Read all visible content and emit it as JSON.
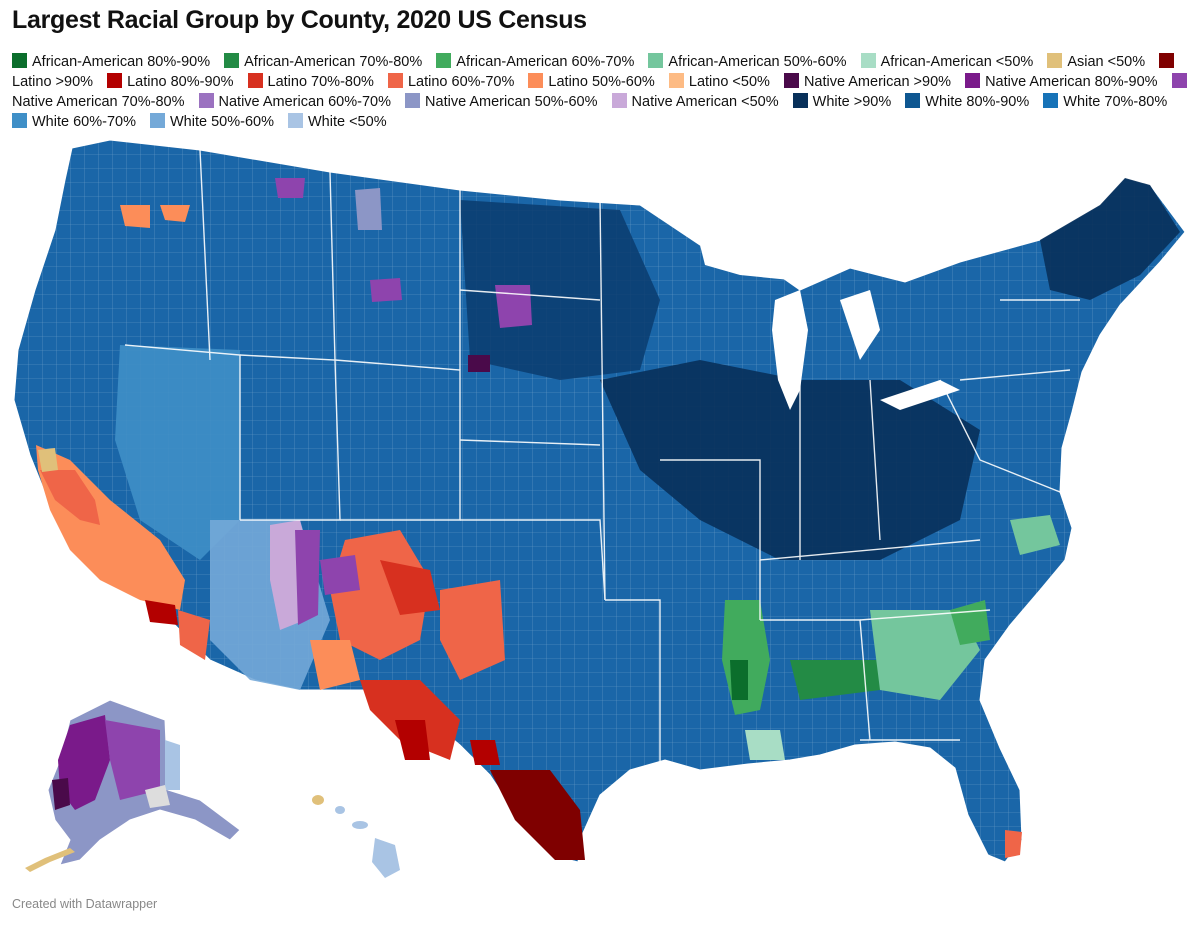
{
  "title": "Largest Racial Group by County, 2020 US Census",
  "footer": "Created with Datawrapper",
  "legend": [
    {
      "label": "African-American 80%-90%",
      "color": "#0b6e2c"
    },
    {
      "label": "African-American 70%-80%",
      "color": "#238b45"
    },
    {
      "label": "African-American 60%-70%",
      "color": "#41ab5d"
    },
    {
      "label": "African-American 50%-60%",
      "color": "#74c69d"
    },
    {
      "label": "African-American <50%",
      "color": "#a8ddc5"
    },
    {
      "label": "Asian <50%",
      "color": "#e0c07a"
    },
    {
      "label": "Latino >90%",
      "color": "#7f0000"
    },
    {
      "label": "Latino 80%-90%",
      "color": "#b30000"
    },
    {
      "label": "Latino 70%-80%",
      "color": "#d7301f"
    },
    {
      "label": "Latino 60%-70%",
      "color": "#ef6548"
    },
    {
      "label": "Latino 50%-60%",
      "color": "#fc8d59"
    },
    {
      "label": "Latino <50%",
      "color": "#fdbb84"
    },
    {
      "label": "Native American >90%",
      "color": "#4a0a4a"
    },
    {
      "label": "Native American 80%-90%",
      "color": "#7a1a8a"
    },
    {
      "label": "Native American 70%-80%",
      "color": "#8e44ad"
    },
    {
      "label": "Native American 60%-70%",
      "color": "#9b72c0"
    },
    {
      "label": "Native American 50%-60%",
      "color": "#8c96c6"
    },
    {
      "label": "Native American <50%",
      "color": "#c9a9d9"
    },
    {
      "label": "White >90%",
      "color": "#08305a"
    },
    {
      "label": "White 80%-90%",
      "color": "#0e5791"
    },
    {
      "label": "White 70%-80%",
      "color": "#1773b8"
    },
    {
      "label": "White 60%-70%",
      "color": "#3f8fc7"
    },
    {
      "label": "White 50%-60%",
      "color": "#74a9d8"
    },
    {
      "label": "White <50%",
      "color": "#a9c4e4"
    }
  ],
  "map_colors": {
    "base_us": "#1a66a8",
    "alaska": "#8c96c6",
    "hawaii": "#a9c4e4"
  }
}
